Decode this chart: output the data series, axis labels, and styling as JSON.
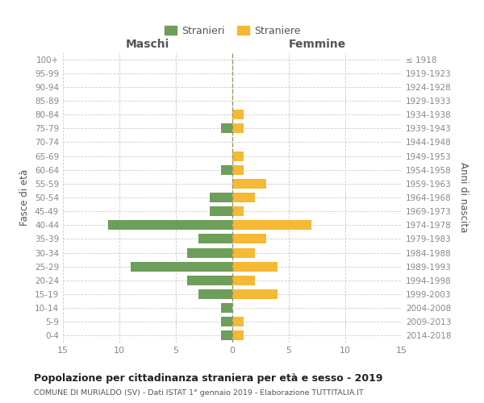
{
  "age_groups": [
    "0-4",
    "5-9",
    "10-14",
    "15-19",
    "20-24",
    "25-29",
    "30-34",
    "35-39",
    "40-44",
    "45-49",
    "50-54",
    "55-59",
    "60-64",
    "65-69",
    "70-74",
    "75-79",
    "80-84",
    "85-89",
    "90-94",
    "95-99",
    "100+"
  ],
  "birth_years": [
    "2014-2018",
    "2009-2013",
    "2004-2008",
    "1999-2003",
    "1994-1998",
    "1989-1993",
    "1984-1988",
    "1979-1983",
    "1974-1978",
    "1969-1973",
    "1964-1968",
    "1959-1963",
    "1954-1958",
    "1949-1953",
    "1944-1948",
    "1939-1943",
    "1934-1938",
    "1929-1933",
    "1924-1928",
    "1919-1923",
    "≤ 1918"
  ],
  "maschi": [
    1,
    1,
    1,
    3,
    4,
    9,
    4,
    3,
    11,
    2,
    2,
    0,
    1,
    0,
    0,
    1,
    0,
    0,
    0,
    0,
    0
  ],
  "femmine": [
    1,
    1,
    0,
    4,
    2,
    4,
    2,
    3,
    7,
    1,
    2,
    3,
    1,
    1,
    0,
    1,
    1,
    0,
    0,
    0,
    0
  ],
  "color_maschi": "#6d9e5a",
  "color_femmine": "#f5b935",
  "title": "Popolazione per cittadinanza straniera per età e sesso - 2019",
  "subtitle": "COMUNE DI MURIALDO (SV) - Dati ISTAT 1° gennaio 2019 - Elaborazione TUTTITALIA.IT",
  "xlabel_left": "Maschi",
  "xlabel_right": "Femmine",
  "ylabel_left": "Fasce di età",
  "ylabel_right": "Anni di nascita",
  "xlim": 15,
  "legend_stranieri": "Stranieri",
  "legend_straniere": "Straniere",
  "bg_color": "#ffffff",
  "grid_color": "#cccccc",
  "bar_height": 0.7,
  "axis_label_color": "#555555",
  "tick_label_color": "#888888",
  "title_color": "#222222",
  "subtitle_color": "#555555"
}
